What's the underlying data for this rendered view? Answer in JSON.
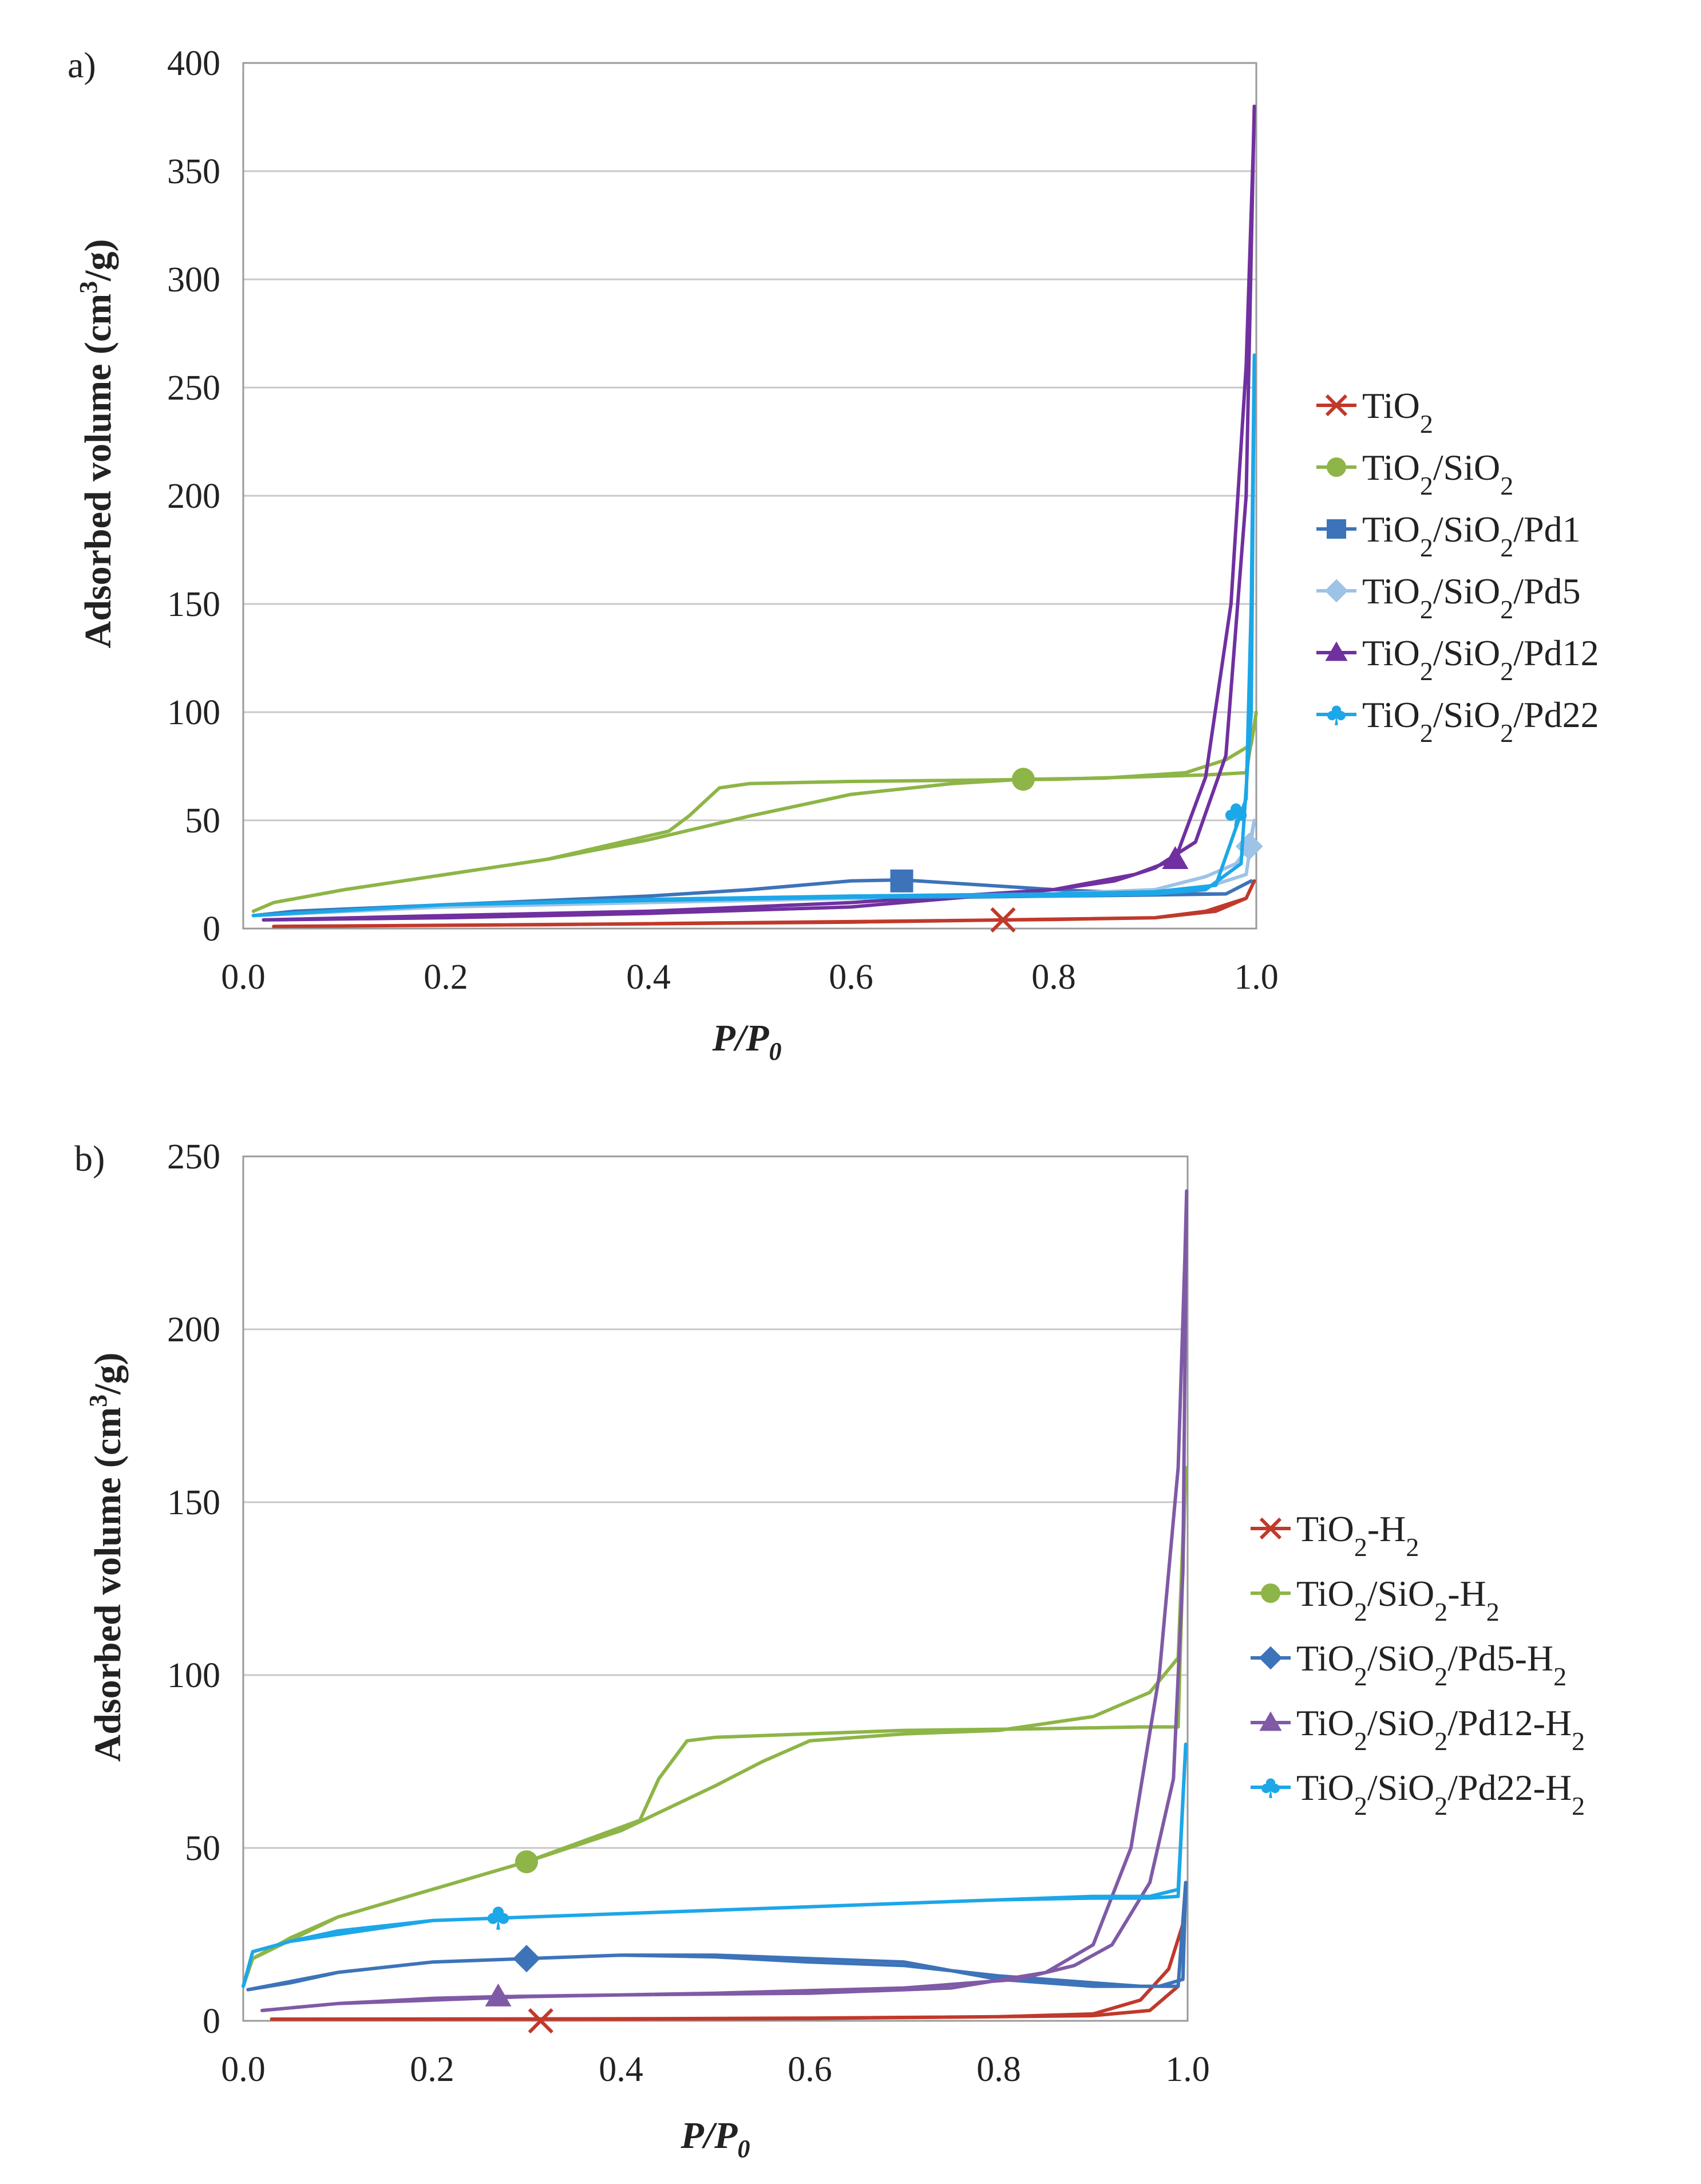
{
  "chart_data": [
    {
      "type": "line",
      "panel_label": "a)",
      "xlabel": "P/P0",
      "ylabel": "Adsorbed volume (cm³/g)",
      "xlim": [
        0.0,
        1.0
      ],
      "ylim": [
        0,
        400
      ],
      "xticks": [
        "0.0",
        "0.2",
        "0.4",
        "0.6",
        "0.8",
        "1.0"
      ],
      "yticks": [
        "0",
        "50",
        "100",
        "150",
        "200",
        "250",
        "300",
        "350",
        "400"
      ],
      "legend_position": "right",
      "series": [
        {
          "name": "TiO₂",
          "color": "#c0392b",
          "marker": "x",
          "marker_point": [
            0.75,
            4
          ],
          "x": [
            0.03,
            0.2,
            0.4,
            0.6,
            0.75,
            0.9,
            0.96,
            0.99,
            0.998,
            0.99,
            0.95,
            0.9,
            0.8,
            0.6,
            0.3,
            0.03
          ],
          "y": [
            1,
            1.5,
            2.2,
            3,
            4,
            5,
            8,
            14,
            22,
            14,
            8,
            5,
            4.2,
            3.2,
            1.8,
            1
          ]
        },
        {
          "name": "TiO₂/SiO₂",
          "color": "#8db547",
          "marker": "circle",
          "marker_point": [
            0.77,
            69
          ],
          "x": [
            0.01,
            0.03,
            0.1,
            0.2,
            0.3,
            0.4,
            0.5,
            0.6,
            0.7,
            0.77,
            0.85,
            0.93,
            0.97,
            0.995,
            1.0,
            0.99,
            0.95,
            0.8,
            0.6,
            0.5,
            0.47,
            0.44,
            0.42,
            0.3,
            0.2,
            0.1,
            0.03,
            0.01
          ],
          "y": [
            8,
            12,
            18,
            25,
            32,
            41,
            52,
            62,
            67,
            69,
            69.5,
            72,
            78,
            85,
            100,
            72,
            71,
            69,
            68,
            67,
            65,
            52,
            45,
            32,
            25,
            18,
            12,
            8
          ]
        },
        {
          "name": "TiO₂/SiO₂/Pd1",
          "color": "#3d73b9",
          "marker": "square",
          "marker_point": [
            0.65,
            22
          ],
          "x": [
            0.01,
            0.1,
            0.2,
            0.3,
            0.4,
            0.5,
            0.6,
            0.65,
            0.7,
            0.8,
            0.9,
            0.97,
            0.995,
            0.97,
            0.9,
            0.8,
            0.6,
            0.4,
            0.2,
            0.05,
            0.01
          ],
          "y": [
            6,
            9,
            11,
            13,
            15,
            18,
            22,
            22.5,
            21,
            18,
            16,
            16,
            22,
            16,
            15.5,
            15,
            14,
            13,
            11,
            8,
            6
          ]
        },
        {
          "name": "TiO₂/SiO₂/Pd5",
          "color": "#9dc3e6",
          "marker": "diamond",
          "marker_point": [
            0.993,
            38
          ],
          "x": [
            0.01,
            0.2,
            0.4,
            0.6,
            0.8,
            0.9,
            0.95,
            0.98,
            0.993,
            0.998,
            0.99,
            0.95,
            0.9,
            0.8,
            0.6,
            0.4,
            0.2,
            0.01
          ],
          "y": [
            6,
            10,
            12,
            14,
            16,
            18,
            24,
            30,
            38,
            50,
            25,
            19,
            17,
            16,
            15,
            13,
            10,
            6
          ]
        },
        {
          "name": "TiO₂/SiO₂/Pd12",
          "color": "#7030a0",
          "marker": "triangle",
          "marker_point": [
            0.92,
            32
          ],
          "x": [
            0.02,
            0.2,
            0.4,
            0.6,
            0.8,
            0.88,
            0.92,
            0.95,
            0.975,
            0.99,
            0.997,
            0.998,
            0.99,
            0.97,
            0.94,
            0.9,
            0.86,
            0.8,
            0.6,
            0.4,
            0.2,
            0.02
          ],
          "y": [
            4,
            5,
            7,
            10,
            18,
            25,
            32,
            70,
            150,
            260,
            360,
            380,
            200,
            80,
            40,
            28,
            22,
            18,
            12,
            8,
            6,
            4
          ]
        },
        {
          "name": "TiO₂/SiO₂/Pd22",
          "color": "#1ca7e8",
          "marker": "club",
          "marker_point": [
            0.98,
            53
          ],
          "x": [
            0.01,
            0.2,
            0.4,
            0.6,
            0.8,
            0.9,
            0.95,
            0.985,
            0.995,
            0.998,
            0.995,
            0.99,
            0.96,
            0.9,
            0.8,
            0.6,
            0.4,
            0.2,
            0.01
          ],
          "y": [
            6,
            11,
            13,
            14.5,
            15,
            16,
            18,
            30,
            100,
            265,
            150,
            60,
            20,
            17,
            16,
            15,
            13.5,
            11,
            6
          ]
        }
      ]
    },
    {
      "type": "line",
      "panel_label": "b)",
      "xlabel": "P/P0",
      "ylabel": "Adsorbed volume (cm³/g)",
      "xlim": [
        0.0,
        1.0
      ],
      "ylim": [
        0,
        250
      ],
      "xticks": [
        "0.0",
        "0.2",
        "0.4",
        "0.6",
        "0.8",
        "1.0"
      ],
      "yticks": [
        "0",
        "50",
        "100",
        "150",
        "200",
        "250"
      ],
      "legend_position": "right",
      "series": [
        {
          "name": "TiO₂-H₂",
          "color": "#c0392b",
          "marker": "x",
          "marker_point": [
            0.315,
            0
          ],
          "x": [
            0.03,
            0.2,
            0.4,
            0.6,
            0.8,
            0.9,
            0.95,
            0.98,
            0.995,
            0.998,
            0.99,
            0.96,
            0.9,
            0.8,
            0.6,
            0.4,
            0.03
          ],
          "y": [
            0.5,
            0.5,
            0.5,
            0.7,
            1.2,
            2,
            6,
            15,
            28,
            40,
            10,
            3,
            1.5,
            1.2,
            0.8,
            0.6,
            0.5
          ]
        },
        {
          "name": "TiO₂/SiO₂-H₂",
          "color": "#8db547",
          "marker": "circle",
          "marker_point": [
            0.3,
            46
          ],
          "x": [
            0.0,
            0.01,
            0.05,
            0.1,
            0.2,
            0.3,
            0.4,
            0.5,
            0.55,
            0.6,
            0.7,
            0.8,
            0.9,
            0.96,
            0.99,
            0.998,
            0.99,
            0.95,
            0.85,
            0.7,
            0.5,
            0.47,
            0.44,
            0.42,
            0.3,
            0.1,
            0.01,
            0.0
          ],
          "y": [
            10,
            18,
            24,
            30,
            38,
            46,
            55,
            68,
            75,
            81,
            83,
            84,
            88,
            95,
            105,
            160,
            85,
            85,
            84.5,
            84,
            82,
            81,
            70,
            58,
            46,
            30,
            18,
            10
          ]
        },
        {
          "name": "TiO₂/SiO₂/Pd5-H₂",
          "color": "#3d73b9",
          "marker": "diamond",
          "marker_point": [
            0.3,
            18
          ],
          "x": [
            0.005,
            0.05,
            0.1,
            0.2,
            0.3,
            0.4,
            0.5,
            0.6,
            0.7,
            0.8,
            0.9,
            0.97,
            0.995,
            0.998,
            0.99,
            0.95,
            0.9,
            0.8,
            0.7,
            0.6,
            0.5,
            0.4,
            0.3,
            0.2,
            0.1,
            0.005
          ],
          "y": [
            9,
            11,
            14,
            17,
            18,
            19,
            19,
            18,
            17,
            12,
            10,
            10,
            12,
            40,
            10,
            10,
            11,
            13,
            16,
            17,
            18.5,
            19,
            18,
            17,
            14,
            9
          ]
        },
        {
          "name": "TiO₂/SiO₂/Pd12-H₂",
          "color": "#7f5aa6",
          "marker": "triangle",
          "marker_point": [
            0.27,
            7
          ],
          "x": [
            0.02,
            0.1,
            0.2,
            0.27,
            0.4,
            0.6,
            0.75,
            0.85,
            0.9,
            0.94,
            0.97,
            0.99,
            0.997,
            0.999,
            0.995,
            0.985,
            0.96,
            0.92,
            0.88,
            0.82,
            0.7,
            0.5,
            0.3,
            0.1,
            0.02
          ],
          "y": [
            3,
            5,
            6.5,
            7,
            7.5,
            8,
            9.5,
            14,
            22,
            50,
            100,
            160,
            220,
            240,
            130,
            70,
            40,
            22,
            16,
            12,
            9.5,
            8,
            7,
            5,
            3
          ]
        },
        {
          "name": "TiO₂/SiO₂/Pd22-H₂",
          "color": "#1ca7e8",
          "marker": "club",
          "marker_point": [
            0.27,
            30
          ],
          "x": [
            0.0,
            0.01,
            0.05,
            0.1,
            0.2,
            0.3,
            0.4,
            0.5,
            0.6,
            0.7,
            0.8,
            0.9,
            0.96,
            0.99,
            0.998,
            0.99,
            0.96,
            0.9,
            0.8,
            0.6,
            0.4,
            0.2,
            0.05,
            0.01,
            0.0
          ],
          "y": [
            10,
            20,
            23,
            26,
            29,
            30,
            31,
            32,
            33,
            34,
            35,
            36,
            36,
            38,
            80,
            36,
            35.5,
            35.5,
            35,
            33,
            31,
            29,
            23,
            20,
            10
          ]
        }
      ]
    }
  ]
}
